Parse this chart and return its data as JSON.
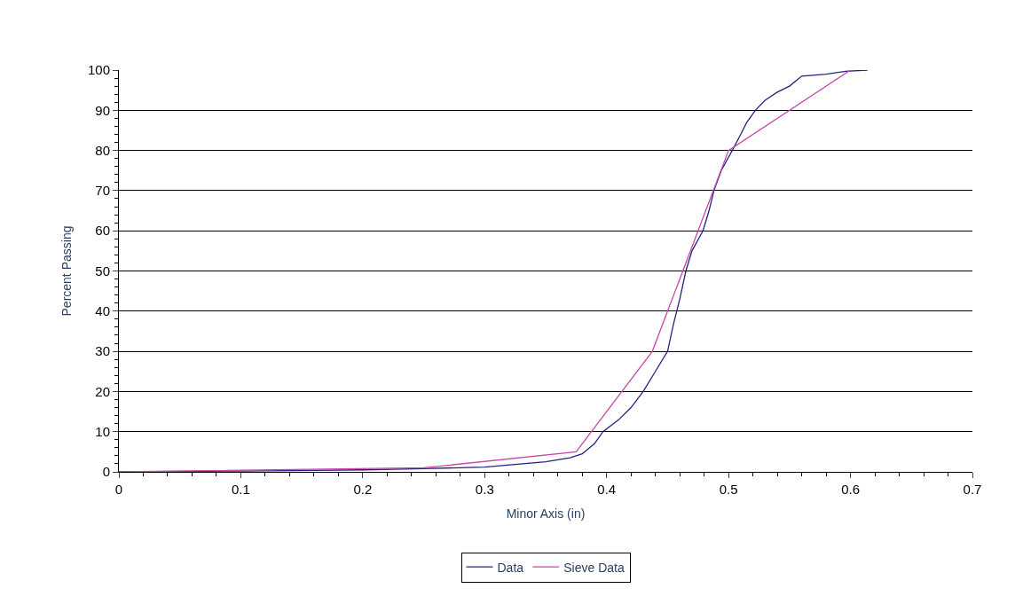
{
  "chart_data": {
    "type": "line",
    "xlabel": "Minor Axis (in)",
    "ylabel": "Percent Passing",
    "xlim": [
      0,
      0.7
    ],
    "xticks": [
      0,
      0.1,
      0.2,
      0.3,
      0.4,
      0.5,
      0.6,
      0.7
    ],
    "ylim": [
      0,
      100
    ],
    "yticks": [
      0,
      10,
      20,
      30,
      40,
      50,
      60,
      70,
      80,
      90,
      100
    ],
    "grid": "y",
    "legend": "bottom",
    "marker": "none",
    "line_style": "solid",
    "series": [
      {
        "name": "Data",
        "color": "#23237e",
        "x": [
          0,
          0.1,
          0.2,
          0.25,
          0.3,
          0.35,
          0.37,
          0.38,
          0.39,
          0.397,
          0.41,
          0.42,
          0.43,
          0.44,
          0.45,
          0.455,
          0.46,
          0.465,
          0.47,
          0.479,
          0.484,
          0.488,
          0.494,
          0.503,
          0.51,
          0.515,
          0.522,
          0.53,
          0.54,
          0.55,
          0.56,
          0.58,
          0.596,
          0.614
        ],
        "values": [
          0,
          0.2,
          0.5,
          0.8,
          1.2,
          2.5,
          3.5,
          4.5,
          7,
          10,
          13,
          16,
          20,
          25,
          30,
          37,
          43,
          50,
          55,
          60,
          65,
          70,
          75,
          80,
          84,
          87,
          90,
          92.5,
          94.5,
          96,
          98.5,
          99,
          99.7,
          100
        ]
      },
      {
        "name": "Sieve Data",
        "color": "#cc44aa",
        "x": [
          0,
          0.25,
          0.375,
          0.4375,
          0.5,
          0.6
        ],
        "values": [
          0,
          1,
          5,
          30,
          80,
          100
        ]
      }
    ]
  }
}
